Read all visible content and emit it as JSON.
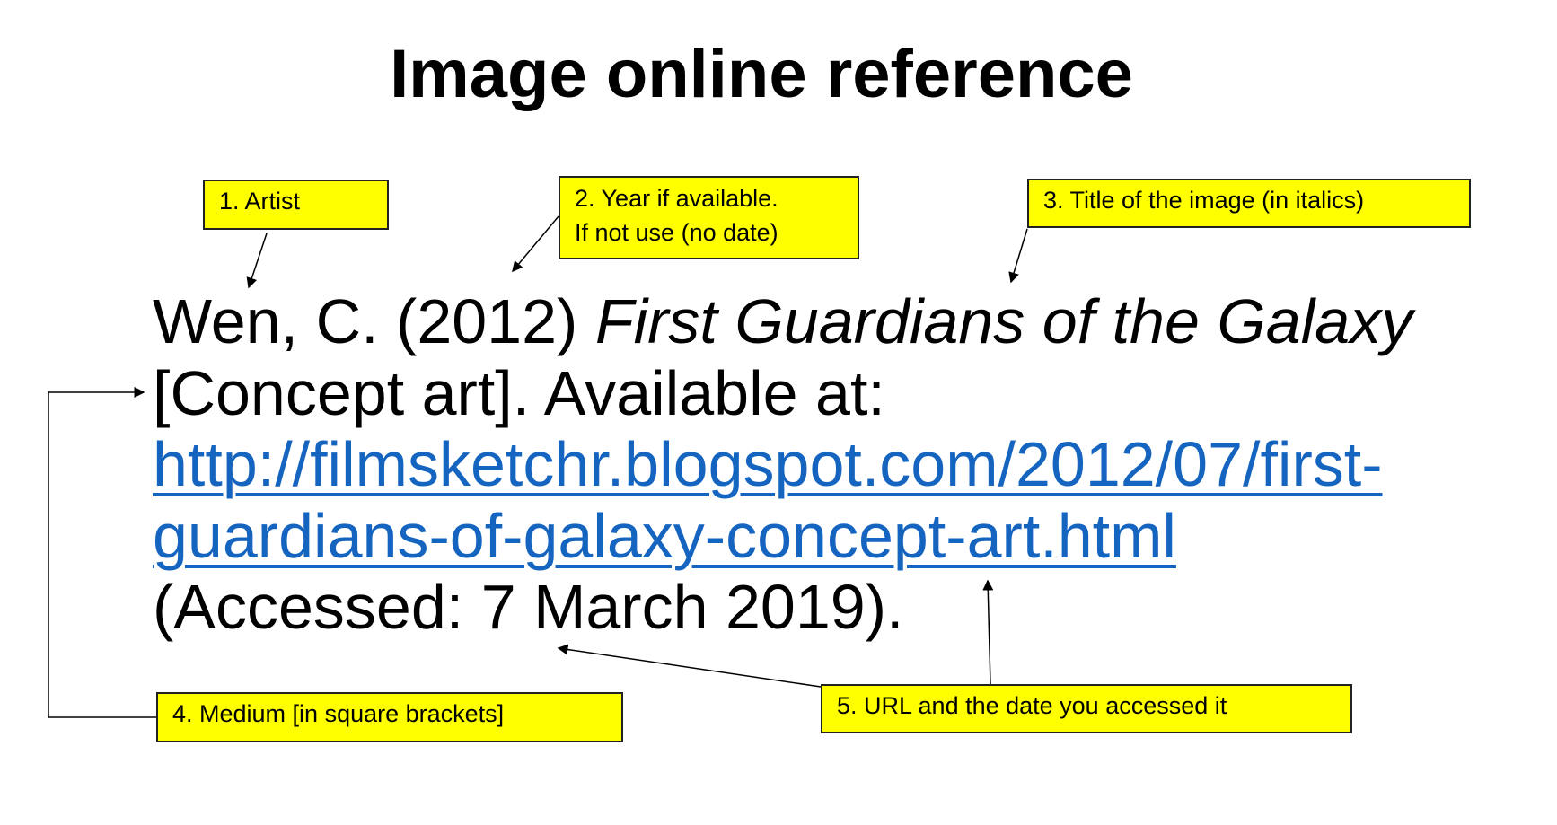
{
  "title": "Image online reference",
  "reference": {
    "author_year": "Wen, C. (2012) ",
    "image_title": "First Guardians of the Galaxy",
    "medium_line": "[Concept art]. Available at:",
    "url_line1": "http://filmsketchr.blogspot.com/2012/07/first-",
    "url_line2": "guardians-of-galaxy-concept-art.html",
    "accessed": "(Accessed: 7 March 2019)."
  },
  "callouts": {
    "artist": "1. Artist",
    "year_line1": "2. Year if available.",
    "year_line2": "If not use (no date)",
    "title": "3. Title of the image (in italics)",
    "medium": "4. Medium [in square brackets]",
    "url": "5. URL and the date you accessed it"
  },
  "colors": {
    "callout_bg": "#ffff00",
    "link": "#1565c0"
  }
}
